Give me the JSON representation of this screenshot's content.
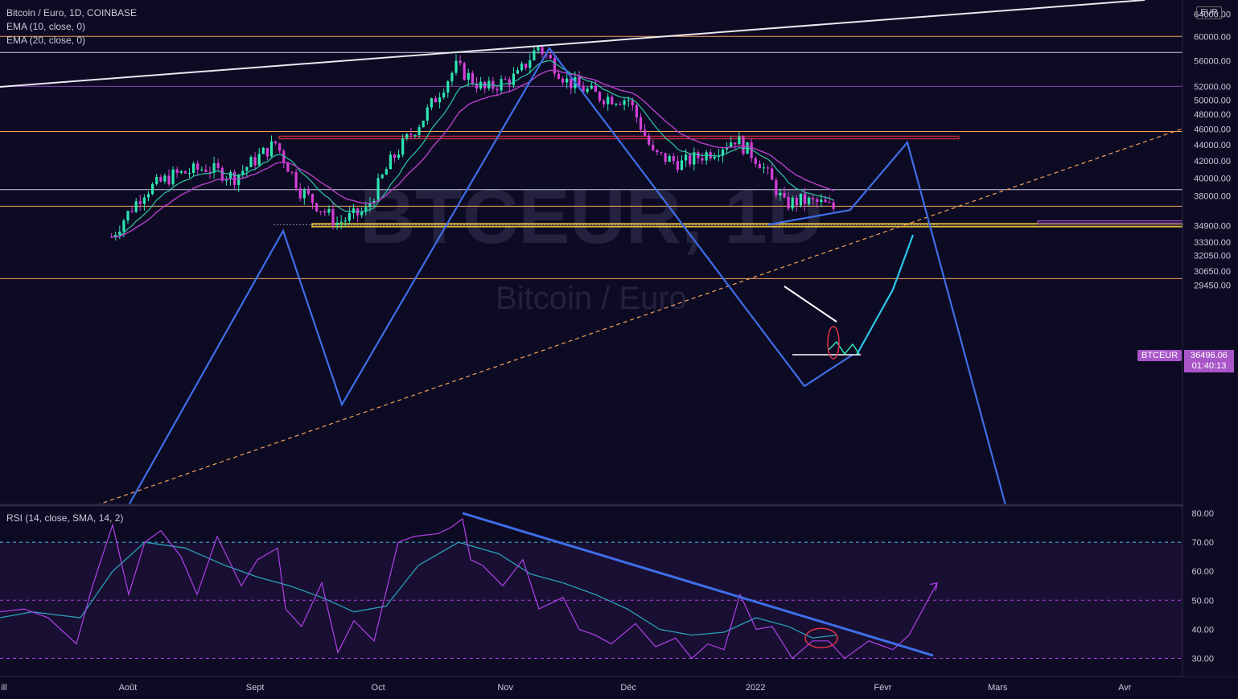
{
  "header": {
    "title": "Bitcoin / Euro, 1D, COINBASE",
    "ema10": "EMA (10, close, 0)",
    "ema20": "EMA (20, close, 0)",
    "currency": "EUR"
  },
  "watermark": {
    "symbol": "BTCEUR, 1D",
    "name": "Bitcoin / Euro"
  },
  "rsi_legend": "RSI (14, close, SMA, 14, 2)",
  "price_tag": {
    "symbol": "BTCEUR",
    "price": "36496.06",
    "countdown": "01:40:13"
  },
  "colors": {
    "background": "#0d0b24",
    "up": "#2ee6b0",
    "down": "#d43fd6",
    "ema10": "#2ec7a3",
    "ema20": "#b53fc9",
    "pattern": "#3f6ee8",
    "rsi": "#b040e8",
    "rsi_ma": "#2a9fb8"
  },
  "chart_data": [
    {
      "type": "candlestick",
      "title": "Bitcoin / Euro, 1D, COINBASE",
      "y_axis_labels": [
        "64000.00",
        "60000.00",
        "56000.00",
        "52000.00",
        "50000.00",
        "48000.00",
        "46000.00",
        "44000.00",
        "42000.00",
        "40000.00",
        "38000.00",
        "34900.00",
        "33300.00",
        "32050.00",
        "30650.00",
        "29450.00"
      ],
      "x_axis_labels": [
        "ill",
        "Août",
        "Sept",
        "Oct",
        "Nov",
        "Déc",
        "2022",
        "Févr",
        "Mars",
        "Avr"
      ],
      "y_scale": "log",
      "series": [
        {
          "name": "EMA (10, close, 0)"
        },
        {
          "name": "EMA (20, close, 0)"
        }
      ],
      "close_path": [
        [
          "2021-07-28",
          33800
        ],
        [
          "2021-08-05",
          38500
        ],
        [
          "2021-08-12",
          40300
        ],
        [
          "2021-08-20",
          41200
        ],
        [
          "2021-08-27",
          40100
        ],
        [
          "2021-09-06",
          44200
        ],
        [
          "2021-09-12",
          38600
        ],
        [
          "2021-09-21",
          35200
        ],
        [
          "2021-09-28",
          36400
        ],
        [
          "2021-10-04",
          41900
        ],
        [
          "2021-10-12",
          47500
        ],
        [
          "2021-10-20",
          55000
        ],
        [
          "2021-10-27",
          51500
        ],
        [
          "2021-11-04",
          53600
        ],
        [
          "2021-11-09",
          58300
        ],
        [
          "2021-11-16",
          52800
        ],
        [
          "2021-11-24",
          50500
        ],
        [
          "2021-12-01",
          50100
        ],
        [
          "2021-12-07",
          42800
        ],
        [
          "2021-12-14",
          41700
        ],
        [
          "2021-12-22",
          43300
        ],
        [
          "2021-12-27",
          44800
        ],
        [
          "2022-01-02",
          41900
        ],
        [
          "2022-01-08",
          37100
        ],
        [
          "2022-01-12",
          37500
        ],
        [
          "2022-01-17",
          37200
        ],
        [
          "2022-01-21",
          36496.06
        ]
      ],
      "horizontal_levels": [
        60000,
        57300,
        52000,
        45700,
        38700,
        36900,
        35000,
        30000
      ],
      "resistance_zone": [
        44750,
        45100
      ],
      "support_zone": [
        34800,
        35100
      ],
      "projection_points": [
        [
          "2022-01-04",
          35000
        ],
        [
          "2022-01-24",
          36500
        ],
        [
          "2022-02-07",
          44300
        ],
        [
          "2022-03-01",
          29000
        ]
      ]
    },
    {
      "type": "line",
      "title": "RSI (14, close, SMA, 14, 2)",
      "y_axis_labels": [
        "80.00",
        "70.00",
        "60.00",
        "50.00",
        "40.00",
        "30.00"
      ],
      "bands": [
        70,
        50,
        30
      ],
      "series": [
        {
          "name": "RSI",
          "values": [
            [
              0,
              46
            ],
            [
              30,
              47
            ],
            [
              60,
              44
            ],
            [
              95,
              35
            ],
            [
              115,
              55
            ],
            [
              140,
              76
            ],
            [
              160,
              52
            ],
            [
              180,
              70
            ],
            [
              200,
              74
            ],
            [
              225,
              65
            ],
            [
              245,
              52
            ],
            [
              270,
              72
            ],
            [
              300,
              55
            ],
            [
              320,
              64
            ],
            [
              345,
              68
            ],
            [
              355,
              47
            ],
            [
              375,
              41
            ],
            [
              400,
              56
            ],
            [
              420,
              32
            ],
            [
              440,
              43
            ],
            [
              465,
              36
            ],
            [
              495,
              70
            ],
            [
              515,
              72
            ],
            [
              545,
              73
            ],
            [
              560,
              75
            ],
            [
              575,
              78
            ],
            [
              585,
              64
            ],
            [
              600,
              62
            ],
            [
              625,
              55
            ],
            [
              650,
              64
            ],
            [
              670,
              47
            ],
            [
              700,
              51
            ],
            [
              720,
              40
            ],
            [
              740,
              38
            ],
            [
              760,
              35
            ],
            [
              790,
              42
            ],
            [
              815,
              34
            ],
            [
              840,
              37
            ],
            [
              860,
              30
            ],
            [
              880,
              35
            ],
            [
              900,
              33
            ],
            [
              920,
              52
            ],
            [
              940,
              40
            ],
            [
              960,
              41
            ],
            [
              985,
              30
            ],
            [
              1010,
              36
            ],
            [
              1030,
              36
            ],
            [
              1050,
              30
            ],
            [
              1080,
              36
            ],
            [
              1110,
              33
            ],
            [
              1130,
              38
            ],
            [
              1165,
              56
            ]
          ]
        },
        {
          "name": "RSI MA",
          "values": [
            [
              0,
              44
            ],
            [
              40,
              46
            ],
            [
              100,
              44
            ],
            [
              140,
              60
            ],
            [
              180,
              70
            ],
            [
              230,
              68
            ],
            [
              280,
              62
            ],
            [
              320,
              58
            ],
            [
              360,
              55
            ],
            [
              400,
              51
            ],
            [
              440,
              46
            ],
            [
              480,
              48
            ],
            [
              520,
              62
            ],
            [
              570,
              70
            ],
            [
              620,
              66
            ],
            [
              660,
              59
            ],
            [
              700,
              56
            ],
            [
              740,
              52
            ],
            [
              780,
              47
            ],
            [
              820,
              40
            ],
            [
              860,
              38
            ],
            [
              900,
              39
            ],
            [
              940,
              44
            ],
            [
              980,
              41
            ],
            [
              1010,
              37
            ],
            [
              1040,
              38
            ]
          ]
        }
      ],
      "trendline": [
        [
          575,
          80
        ],
        [
          1160,
          31
        ]
      ]
    }
  ]
}
